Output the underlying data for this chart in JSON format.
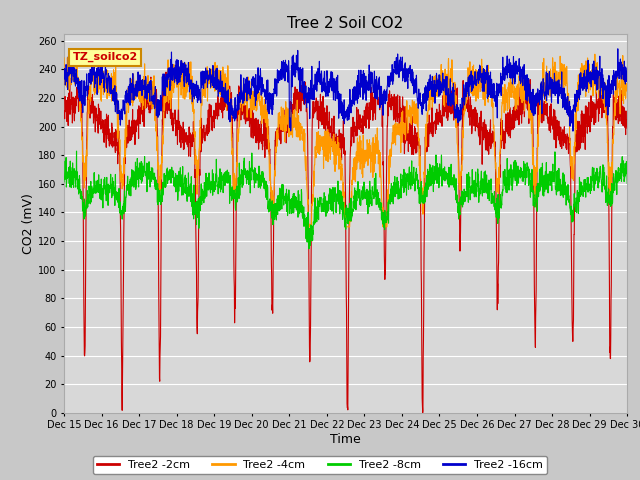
{
  "title": "Tree 2 Soil CO2",
  "xlabel": "Time",
  "ylabel": "CO2 (mV)",
  "ylim": [
    0,
    265
  ],
  "yticks": [
    0,
    20,
    40,
    60,
    80,
    100,
    120,
    140,
    160,
    180,
    200,
    220,
    240,
    260
  ],
  "xtick_labels": [
    "Dec 15",
    "Dec 16",
    "Dec 17",
    "Dec 18",
    "Dec 19",
    "Dec 20",
    "Dec 21",
    "Dec 22",
    "Dec 23",
    "Dec 24",
    "Dec 25",
    "Dec 26",
    "Dec 27",
    "Dec 28",
    "Dec 29",
    "Dec 30"
  ],
  "legend_label": "TZ_soilco2",
  "legend_box_color": "#ffff99",
  "legend_box_edge": "#cc8800",
  "series_labels": [
    "Tree2 -2cm",
    "Tree2 -4cm",
    "Tree2 -8cm",
    "Tree2 -16cm"
  ],
  "series_colors": [
    "#cc0000",
    "#ff9900",
    "#00cc00",
    "#0000cc"
  ],
  "fig_bg_color": "#c8c8c8",
  "plot_bg_color": "#d8d8d8",
  "grid_color": "#ffffff",
  "title_fontsize": 11,
  "axis_label_fontsize": 9,
  "tick_fontsize": 7,
  "line_width": 0.8,
  "n_days": 15,
  "pts_per_day": 144
}
